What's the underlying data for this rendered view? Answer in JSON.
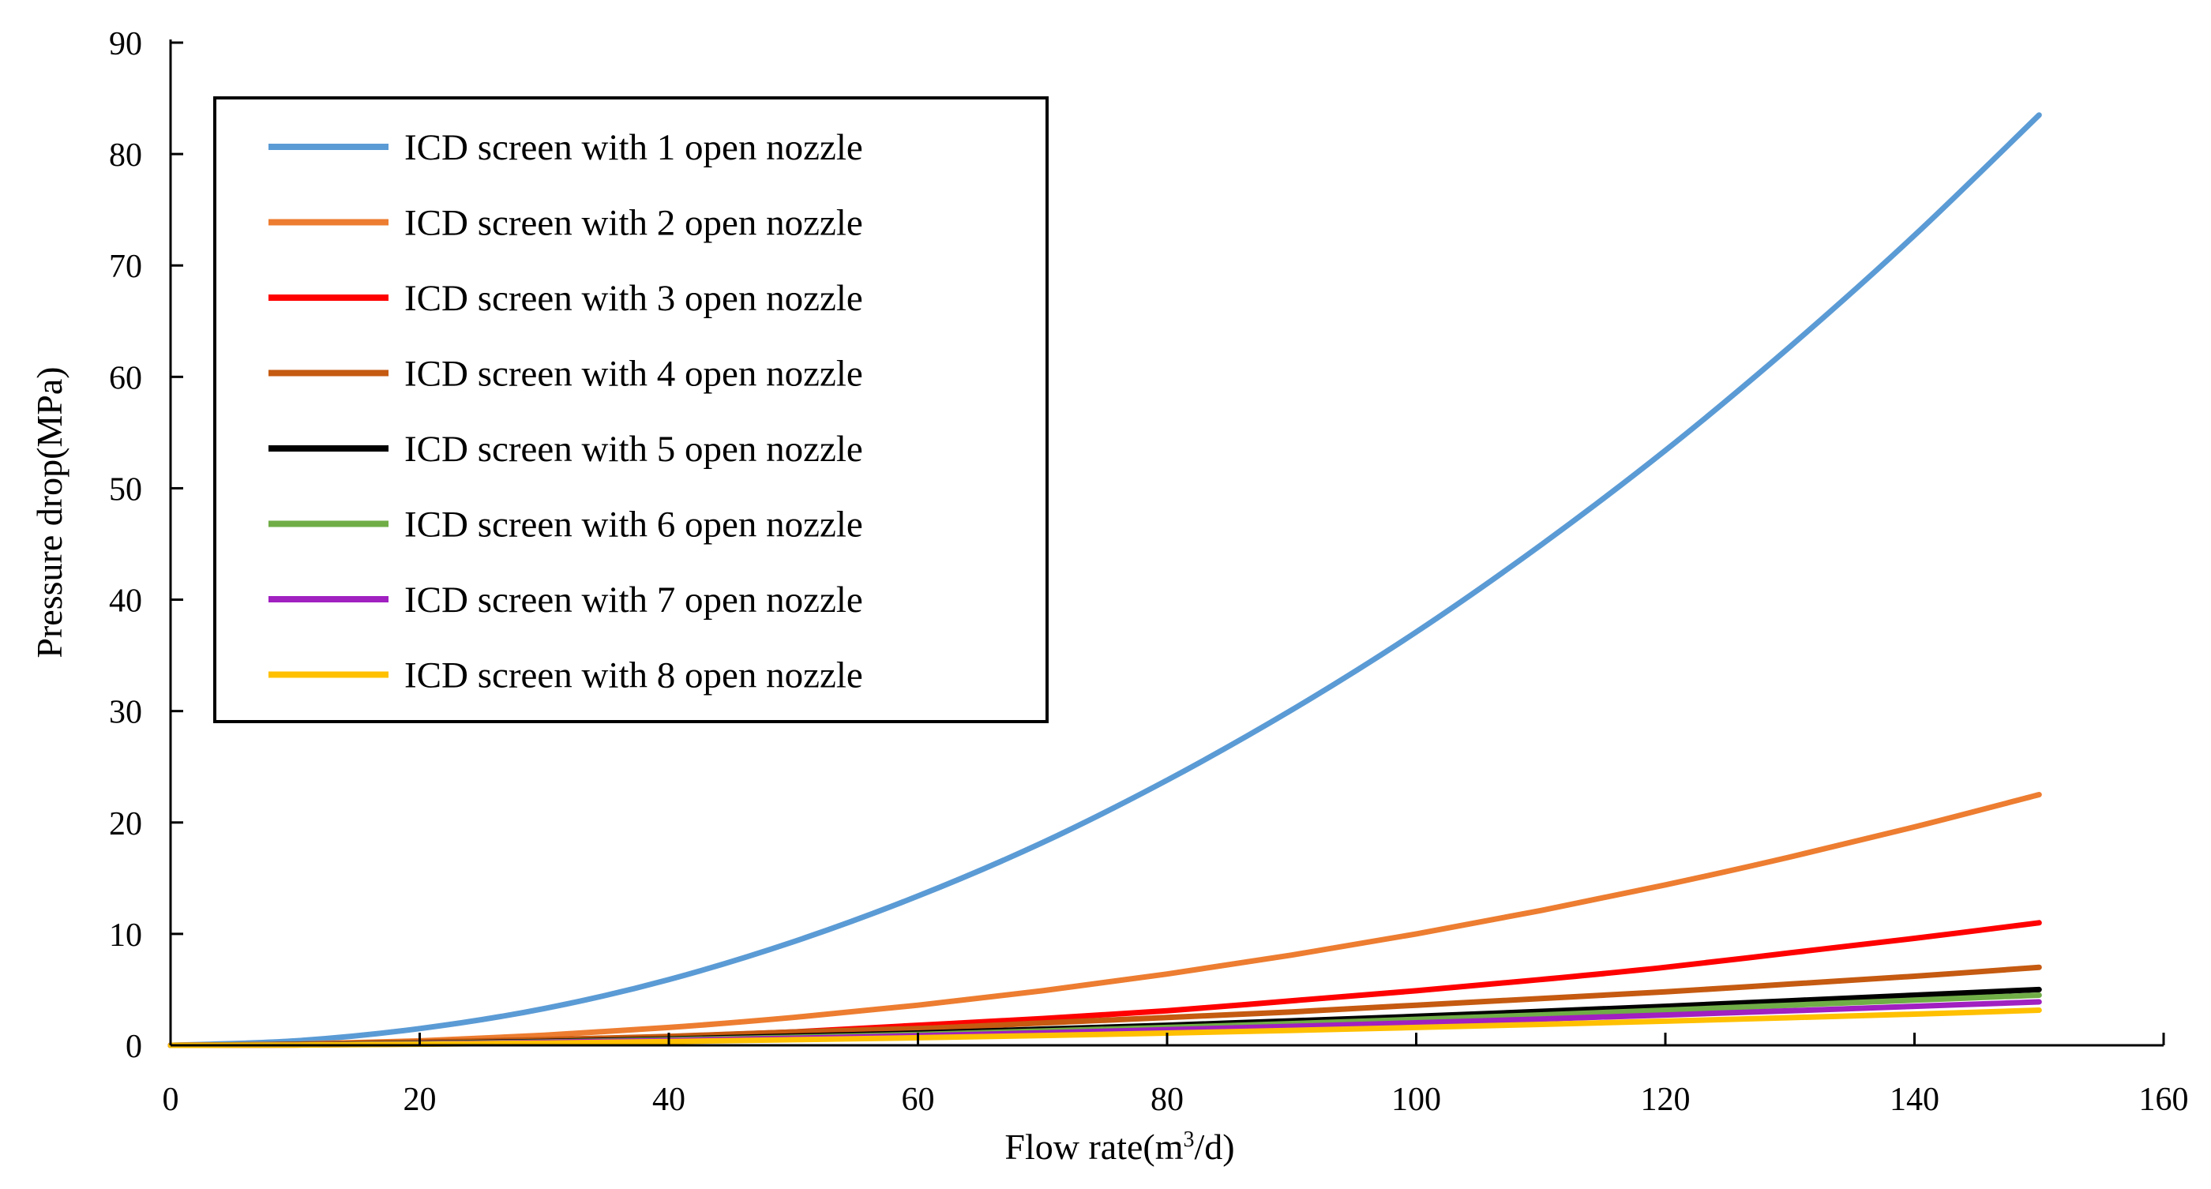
{
  "chart_data": {
    "type": "line",
    "title": "",
    "xlabel": "Flow rate(m³/d)",
    "xlabel_main": "Flow rate(m",
    "xlabel_sup": "3",
    "xlabel_end": "/d)",
    "ylabel": "Pressure drop(MPa)",
    "xlim": [
      0,
      160
    ],
    "ylim": [
      0,
      90
    ],
    "xticks": [
      0,
      20,
      40,
      60,
      80,
      100,
      120,
      140,
      160
    ],
    "yticks": [
      0,
      10,
      20,
      30,
      40,
      50,
      60,
      70,
      80,
      90
    ],
    "grid": false,
    "legend_position": "top-left",
    "x": [
      0,
      10,
      20,
      30,
      40,
      50,
      60,
      70,
      80,
      90,
      100,
      110,
      120,
      130,
      140,
      150
    ],
    "series": [
      {
        "name": "ICD screen with 1 open nozzle",
        "color": "#5b9bd5",
        "values": [
          0,
          0.4,
          1.5,
          3.3,
          5.9,
          9.3,
          13.4,
          18.2,
          23.8,
          30.1,
          37.1,
          44.9,
          53.4,
          62.7,
          72.7,
          83.5
        ]
      },
      {
        "name": "ICD screen with 2 open nozzle",
        "color": "#ed7d31",
        "values": [
          0,
          0.1,
          0.4,
          0.9,
          1.6,
          2.5,
          3.6,
          4.9,
          6.4,
          8.1,
          10.0,
          12.1,
          14.4,
          16.9,
          19.6,
          22.5
        ]
      },
      {
        "name": "ICD screen with 3 open nozzle",
        "color": "#ff0000",
        "values": [
          0,
          0.05,
          0.2,
          0.44,
          0.78,
          1.2,
          1.8,
          2.4,
          3.1,
          4.0,
          4.9,
          5.9,
          7.0,
          8.3,
          9.6,
          11.0
        ]
      },
      {
        "name": "ICD screen with 4 open nozzle",
        "color": "#c55a11",
        "values": [
          0,
          0.1,
          0.3,
          0.5,
          0.8,
          1.2,
          1.5,
          2.0,
          2.5,
          3.0,
          3.6,
          4.2,
          4.8,
          5.5,
          6.2,
          7.0
        ]
      },
      {
        "name": "ICD screen with 5 open nozzle",
        "color": "#000000",
        "values": [
          0,
          0.05,
          0.18,
          0.35,
          0.57,
          0.83,
          1.1,
          1.45,
          1.8,
          2.2,
          2.6,
          3.05,
          3.5,
          4.0,
          4.5,
          5.0
        ]
      },
      {
        "name": "ICD screen with 6 open nozzle",
        "color": "#70ad47",
        "values": [
          0,
          0.04,
          0.15,
          0.3,
          0.5,
          0.72,
          0.98,
          1.28,
          1.6,
          1.95,
          2.33,
          2.73,
          3.15,
          3.6,
          4.05,
          4.5
        ]
      },
      {
        "name": "ICD screen with 7 open nozzle",
        "color": "#a020c0",
        "values": [
          0,
          0.03,
          0.12,
          0.26,
          0.43,
          0.63,
          0.86,
          1.12,
          1.4,
          1.7,
          2.02,
          2.36,
          2.72,
          3.1,
          3.5,
          3.9
        ]
      },
      {
        "name": "ICD screen with 8 open nozzle",
        "color": "#ffc000",
        "values": [
          0,
          0.02,
          0.1,
          0.2,
          0.34,
          0.5,
          0.68,
          0.88,
          1.1,
          1.34,
          1.6,
          1.88,
          2.17,
          2.48,
          2.8,
          3.15
        ]
      }
    ]
  }
}
